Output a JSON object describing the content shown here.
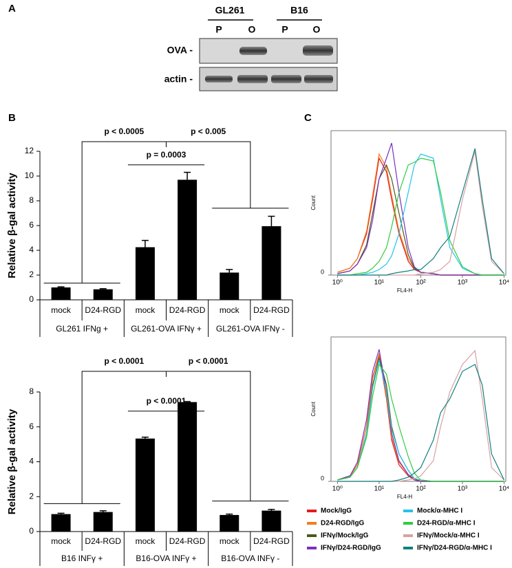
{
  "panels": [
    "A",
    "B",
    "C"
  ],
  "blot": {
    "groups": [
      "GL261",
      "B16"
    ],
    "lanes": [
      "P",
      "O",
      "P",
      "O"
    ],
    "rows": [
      "OVA -",
      "actin -"
    ]
  },
  "chart_data": [
    {
      "type": "bar",
      "ylabel": "Relative β-gal activity",
      "categories": [
        "mock",
        "D24-RGD",
        "mock",
        "D24-RGD",
        "mock",
        "D24-RGD"
      ],
      "groups": [
        "GL261 IFNg +",
        "GL261-OVA IFNγ +",
        "GL261-OVA IFNγ -"
      ],
      "values": [
        1.0,
        0.85,
        4.25,
        9.7,
        2.2,
        5.95
      ],
      "errors": [
        0.05,
        0.05,
        0.55,
        0.6,
        0.25,
        0.8
      ],
      "color": "#000000",
      "ylim": [
        0,
        12
      ],
      "yticks": [
        0,
        2,
        4,
        6,
        8,
        10,
        12
      ],
      "annotations": [
        "p < 0.0005",
        "p < 0.005",
        "p = 0.0003"
      ]
    },
    {
      "type": "bar",
      "ylabel": "Relative β-gal activity",
      "categories": [
        "mock",
        "D24-RGD",
        "mock",
        "D24-RGD",
        "mock",
        "D24-RGD"
      ],
      "groups": [
        "B16  INFγ +",
        "B16-OVA  INFγ +",
        "B16-OVA  INFγ -"
      ],
      "values": [
        1.0,
        1.12,
        5.33,
        7.42,
        0.95,
        1.2
      ],
      "errors": [
        0.05,
        0.07,
        0.08,
        0.03,
        0.05,
        0.07
      ],
      "color": "#000000",
      "ylim": [
        0,
        8
      ],
      "yticks": [
        0,
        2,
        4,
        6,
        8
      ],
      "annotations": [
        "p < 0.0001",
        "p < 0.0001",
        "p < 0.0001"
      ]
    },
    {
      "type": "line",
      "xlabel": "FL4-H",
      "ylabel": "Count",
      "xscale": "log",
      "xlim": [
        0.7,
        11000
      ],
      "ylim": [
        0,
        105
      ],
      "xticks": [
        {
          "value": 1,
          "label": "10⁰"
        },
        {
          "value": 10,
          "label": "10¹"
        },
        {
          "value": 100,
          "label": "10²"
        },
        {
          "value": 1000,
          "label": "10³"
        },
        {
          "value": 10000,
          "label": "10⁴"
        }
      ],
      "yticks": [
        0
      ],
      "x": [
        1,
        2,
        3,
        5,
        7,
        10,
        15,
        20,
        30,
        50,
        70,
        100,
        200,
        300,
        500,
        1000,
        2000,
        3000,
        5000,
        10000
      ],
      "series": [
        {
          "name": "Mock/IgG",
          "color": "#e31a1c",
          "values": [
            2,
            5,
            12,
            30,
            55,
            85,
            75,
            55,
            30,
            10,
            4,
            2,
            1,
            0,
            0,
            0,
            0,
            0,
            0,
            0
          ]
        },
        {
          "name": "D24-RGD/IgG",
          "color": "#f47c20",
          "values": [
            2,
            5,
            12,
            32,
            58,
            88,
            78,
            58,
            32,
            12,
            5,
            2,
            1,
            0,
            0,
            0,
            0,
            0,
            0,
            0
          ]
        },
        {
          "name": "IFNγ/Mock/IgG",
          "color": "#4a5a1a",
          "values": [
            1,
            3,
            8,
            22,
            45,
            70,
            80,
            70,
            45,
            15,
            5,
            2,
            1,
            0,
            0,
            0,
            0,
            0,
            0,
            0
          ]
        },
        {
          "name": "IFNγ/D24-RGD/IgG",
          "color": "#7b2fbe",
          "values": [
            1,
            3,
            8,
            20,
            40,
            70,
            85,
            96,
            60,
            20,
            6,
            2,
            1,
            0,
            0,
            0,
            0,
            0,
            0,
            0
          ]
        },
        {
          "name": "Mock/α-MHC I",
          "color": "#22c4e8",
          "values": [
            0,
            0,
            0,
            1,
            2,
            4,
            8,
            14,
            30,
            60,
            80,
            88,
            85,
            55,
            20,
            5,
            1,
            0,
            0,
            0
          ]
        },
        {
          "name": "D24-RGD/α-MHC I",
          "color": "#2ecc40",
          "values": [
            0,
            0,
            1,
            2,
            5,
            10,
            20,
            35,
            60,
            80,
            82,
            85,
            83,
            60,
            25,
            6,
            1,
            0,
            0,
            0
          ]
        },
        {
          "name": "IFNγ/Mock/α-MHC I",
          "color": "#d9a0a0",
          "values": [
            0,
            0,
            0,
            0,
            0,
            0,
            0,
            0,
            0,
            0,
            0,
            1,
            2,
            4,
            10,
            55,
            90,
            50,
            10,
            1
          ]
        },
        {
          "name": "IFNγ/D24-RGD/α-MHC I",
          "color": "#0f7f7f",
          "values": [
            0,
            0,
            0,
            0,
            0,
            0,
            0,
            1,
            2,
            3,
            4,
            4,
            12,
            20,
            28,
            60,
            92,
            55,
            12,
            1
          ]
        }
      ]
    },
    {
      "type": "line",
      "xlabel": "FL4-H",
      "ylabel": "Count",
      "xscale": "log",
      "xlim": [
        0.7,
        11000
      ],
      "ylim": [
        0,
        105
      ],
      "xticks": [
        {
          "value": 1,
          "label": "10⁰"
        },
        {
          "value": 10,
          "label": "10¹"
        },
        {
          "value": 100,
          "label": "10²"
        },
        {
          "value": 1000,
          "label": "10³"
        },
        {
          "value": 10000,
          "label": "10⁴"
        }
      ],
      "yticks": [
        0
      ],
      "x": [
        1,
        2,
        3,
        5,
        7,
        10,
        15,
        20,
        30,
        50,
        70,
        100,
        200,
        300,
        500,
        1000,
        2000,
        3000,
        5000,
        10000
      ],
      "series": [
        {
          "name": "Mock/IgG",
          "color": "#e31a1c",
          "values": [
            1,
            4,
            12,
            40,
            75,
            92,
            60,
            30,
            12,
            4,
            1,
            0,
            0,
            0,
            0,
            0,
            0,
            0,
            0,
            0
          ]
        },
        {
          "name": "D24-RGD/IgG",
          "color": "#f47c20",
          "values": [
            1,
            4,
            12,
            40,
            76,
            93,
            62,
            32,
            14,
            5,
            2,
            0,
            0,
            0,
            0,
            0,
            0,
            0,
            0,
            0
          ]
        },
        {
          "name": "IFNγ/Mock/IgG",
          "color": "#4a5a1a",
          "values": [
            1,
            3,
            10,
            35,
            70,
            90,
            70,
            40,
            20,
            8,
            2,
            0,
            0,
            0,
            0,
            0,
            0,
            0,
            0,
            0
          ]
        },
        {
          "name": "IFNγ/D24-RGD/IgG",
          "color": "#7b2fbe",
          "values": [
            1,
            4,
            14,
            45,
            80,
            96,
            65,
            35,
            15,
            5,
            1,
            0,
            0,
            0,
            0,
            0,
            0,
            0,
            0,
            0
          ]
        },
        {
          "name": "Mock/α-MHC I",
          "color": "#22c4e8",
          "values": [
            1,
            3,
            10,
            35,
            68,
            88,
            65,
            38,
            20,
            8,
            2,
            1,
            0,
            0,
            0,
            0,
            0,
            0,
            0,
            0
          ]
        },
        {
          "name": "D24-RGD/α-MHC I",
          "color": "#2ecc40",
          "values": [
            1,
            3,
            10,
            32,
            62,
            85,
            78,
            60,
            40,
            18,
            6,
            1,
            0,
            0,
            0,
            0,
            0,
            0,
            0,
            0
          ]
        },
        {
          "name": "IFNγ/Mock/α-MHC I",
          "color": "#d9a0a0",
          "values": [
            0,
            0,
            0,
            0,
            0,
            0,
            0,
            0,
            0,
            1,
            2,
            4,
            15,
            40,
            65,
            85,
            95,
            60,
            10,
            1
          ]
        },
        {
          "name": "IFNγ/D24-RGD/α-MHC I",
          "color": "#0f7f7f",
          "values": [
            0,
            0,
            0,
            0,
            0,
            0,
            0,
            0,
            1,
            3,
            6,
            10,
            30,
            50,
            60,
            80,
            85,
            70,
            20,
            1
          ]
        }
      ]
    }
  ]
}
